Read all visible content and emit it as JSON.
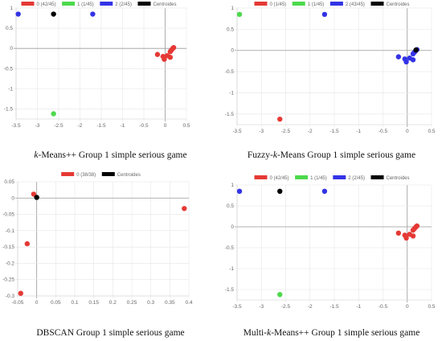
{
  "charts": [
    {
      "caption": "k-Means++ Group 1 simple serious game",
      "caption_italic": "k",
      "caption_rest": "-Means++ Group 1 simple serious game",
      "chart_data": {
        "type": "scatter",
        "legend": [
          "0 (42/45)",
          "1 (1/45)",
          "2 (2/45)",
          "Centroides"
        ],
        "legend_colors": [
          "#e53935",
          "#4cd94c",
          "#3333e6",
          "#000000"
        ],
        "legend_position": "top",
        "grid": true,
        "xlim": [
          -3.5,
          0.5
        ],
        "ylim": [
          -1.75,
          1.0
        ],
        "xticks": [
          "-3.5",
          "-3",
          "-2.5",
          "-2",
          "-1.5",
          "-1",
          "-0.5",
          "0",
          "0.5"
        ],
        "yticks": [
          "1",
          "0.5",
          "0",
          "-0.5",
          "-1",
          "-1.5"
        ],
        "series": [
          {
            "name": "0 (42/45)",
            "points": [
              [
                0.2,
                0.02
              ],
              [
                0.18,
                0.0
              ],
              [
                0.15,
                -0.04
              ],
              [
                0.12,
                -0.08
              ],
              [
                -0.18,
                -0.15
              ],
              [
                0.05,
                -0.18
              ],
              [
                -0.05,
                -0.2
              ],
              [
                0.12,
                -0.22
              ],
              [
                -0.02,
                -0.27
              ]
            ]
          },
          {
            "name": "1 (1/45)",
            "points": [
              [
                -2.62,
                -1.62
              ]
            ]
          },
          {
            "name": "2 (2/45)",
            "points": [
              [
                -3.45,
                0.85
              ],
              [
                -1.7,
                0.85
              ]
            ]
          },
          {
            "name": "Centroides",
            "points": [
              [
                -2.62,
                0.85
              ]
            ]
          }
        ]
      }
    },
    {
      "caption": "Fuzzy-k-Means Group 1 simple serious game",
      "caption_pre": "Fuzzy-",
      "caption_italic": "k",
      "caption_rest": "-Means Group 1 simple serious game",
      "chart_data": {
        "type": "scatter",
        "legend": [
          "0 (1/45)",
          "1 (1/45)",
          "2 (43/45)",
          "Centroides"
        ],
        "legend_colors": [
          "#e53935",
          "#4cd94c",
          "#3333e6",
          "#000000"
        ],
        "legend_position": "top",
        "grid": true,
        "xlim": [
          -3.5,
          0.5
        ],
        "ylim": [
          -1.75,
          1.0
        ],
        "xticks": [
          "-3.5",
          "-3",
          "-2.5",
          "-2",
          "-1.5",
          "-1",
          "-0.5",
          "0",
          "0.5"
        ],
        "yticks": [
          "1",
          "0.5",
          "0",
          "-0.5",
          "-1",
          "-1.5"
        ],
        "series": [
          {
            "name": "0 (1/45)",
            "points": [
              [
                -2.62,
                -1.62
              ]
            ]
          },
          {
            "name": "1 (1/45)",
            "points": [
              [
                -3.45,
                0.85
              ]
            ]
          },
          {
            "name": "2 (43/45)",
            "points": [
              [
                -1.7,
                0.85
              ],
              [
                0.2,
                0.02
              ],
              [
                0.18,
                0.0
              ],
              [
                0.15,
                -0.04
              ],
              [
                0.12,
                -0.08
              ],
              [
                -0.18,
                -0.15
              ],
              [
                0.05,
                -0.18
              ],
              [
                -0.05,
                -0.2
              ],
              [
                0.12,
                -0.22
              ],
              [
                -0.02,
                -0.27
              ]
            ]
          },
          {
            "name": "Centroides",
            "points": [
              [
                0.18,
                0.01
              ]
            ]
          }
        ]
      }
    },
    {
      "caption": "DBSCAN Group 1 simple serious game",
      "chart_data": {
        "type": "scatter",
        "legend": [
          "0 (38/38)",
          "Centroides"
        ],
        "legend_colors": [
          "#e53935",
          "#000000"
        ],
        "legend_position": "top",
        "grid": true,
        "xlim": [
          -0.05,
          0.4
        ],
        "ylim": [
          -0.3,
          0.05
        ],
        "xticks": [
          "-0.05",
          "0",
          "0.05",
          "0.1",
          "0.15",
          "0.2",
          "0.25",
          "0.3",
          "0.35",
          "0.4"
        ],
        "yticks": [
          "0.05",
          "0",
          "-0.05",
          "-0.1",
          "-0.15",
          "-0.2",
          "-0.25",
          "-0.3"
        ],
        "series": [
          {
            "name": "0 (38/38)",
            "points": [
              [
                -0.008,
                0.012
              ],
              [
                0.388,
                -0.032
              ],
              [
                -0.025,
                -0.14
              ],
              [
                -0.042,
                -0.292
              ]
            ]
          },
          {
            "name": "Centroides",
            "points": [
              [
                0.0,
                0.002
              ]
            ]
          }
        ]
      }
    },
    {
      "caption": "Multi-k-Means++ Group 1 simple serious game",
      "caption_pre": "Multi-",
      "caption_italic": "k",
      "caption_rest": "-Means++ Group 1 simple serious game",
      "chart_data": {
        "type": "scatter",
        "legend": [
          "0 (42/45)",
          "1 (1/45)",
          "2 (2/45)",
          "Centroides"
        ],
        "legend_colors": [
          "#e53935",
          "#4cd94c",
          "#3333e6",
          "#000000"
        ],
        "legend_position": "top",
        "grid": true,
        "xlim": [
          -3.5,
          0.5
        ],
        "ylim": [
          -1.75,
          1.0
        ],
        "xticks": [
          "-3.5",
          "-3",
          "-2.5",
          "-2",
          "-1.5",
          "-1",
          "-0.5",
          "0",
          "0.5"
        ],
        "yticks": [
          "1",
          "0.5",
          "0",
          "-0.5",
          "-1",
          "-1.5"
        ],
        "series": [
          {
            "name": "0 (42/45)",
            "points": [
              [
                0.2,
                0.02
              ],
              [
                0.18,
                0.0
              ],
              [
                0.15,
                -0.04
              ],
              [
                0.12,
                -0.08
              ],
              [
                -0.18,
                -0.15
              ],
              [
                0.05,
                -0.18
              ],
              [
                -0.05,
                -0.2
              ],
              [
                0.12,
                -0.22
              ],
              [
                -0.02,
                -0.27
              ]
            ]
          },
          {
            "name": "1 (1/45)",
            "points": [
              [
                -2.62,
                -1.62
              ]
            ]
          },
          {
            "name": "2 (2/45)",
            "points": [
              [
                -3.45,
                0.85
              ],
              [
                -1.7,
                0.85
              ]
            ]
          },
          {
            "name": "Centroides",
            "points": [
              [
                -2.62,
                0.85
              ]
            ]
          }
        ]
      }
    }
  ]
}
